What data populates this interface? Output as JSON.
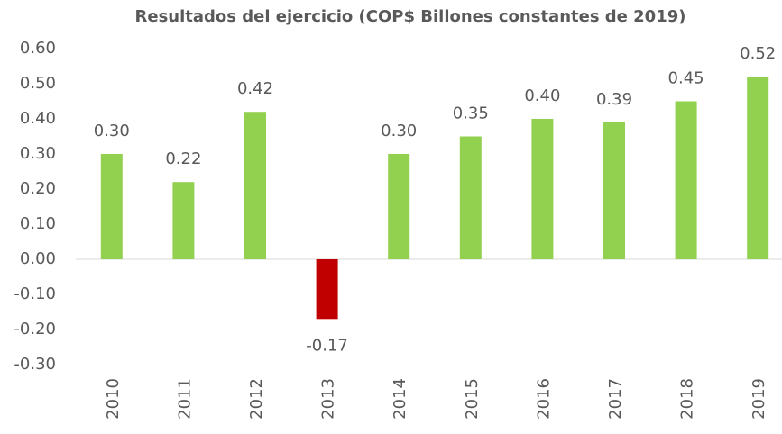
{
  "chart_data": {
    "type": "bar",
    "title": "Resultados del ejercicio (COP$ Billones constantes de 2019)",
    "categories": [
      "2010",
      "2011",
      "2012",
      "2013",
      "2014",
      "2015",
      "2016",
      "2017",
      "2018",
      "2019"
    ],
    "values": [
      0.3,
      0.22,
      0.42,
      -0.17,
      0.3,
      0.35,
      0.4,
      0.39,
      0.45,
      0.52
    ],
    "value_labels": [
      "0.30",
      "0.22",
      "0.42",
      "-0.17",
      "0.30",
      "0.35",
      "0.40",
      "0.39",
      "0.45",
      "0.52"
    ],
    "colors": [
      "#92d050",
      "#92d050",
      "#92d050",
      "#c00000",
      "#92d050",
      "#92d050",
      "#92d050",
      "#92d050",
      "#92d050",
      "#92d050"
    ],
    "ylim": [
      -0.3,
      0.6
    ],
    "yticks": [
      {
        "value": -0.3,
        "label": "-0.30"
      },
      {
        "value": -0.2,
        "label": "-0.20"
      },
      {
        "value": -0.1,
        "label": "-0.10"
      },
      {
        "value": 0,
        "label": "0.00"
      },
      {
        "value": 0.1,
        "label": "0.10"
      },
      {
        "value": 0.2,
        "label": "0.20"
      },
      {
        "value": 0.3,
        "label": "0.30"
      },
      {
        "value": 0.4,
        "label": "0.40"
      },
      {
        "value": 0.5,
        "label": "0.50"
      },
      {
        "value": 0.6,
        "label": "0.60"
      }
    ],
    "grid": false
  }
}
